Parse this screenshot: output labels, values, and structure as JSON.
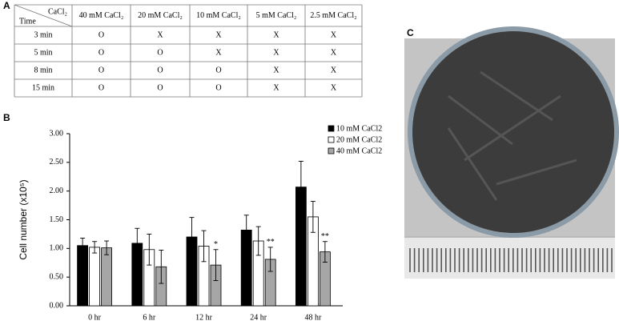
{
  "panels": {
    "a": "A",
    "b": "B",
    "c": "C"
  },
  "table": {
    "corner": {
      "top": "CaCl₂",
      "bottom": "Time"
    },
    "columns": [
      "40 mM CaCl₂",
      "20 mM CaCl₂",
      "10 mM CaCl₂",
      "5 mM CaCl₂",
      "2.5 mM CaCl₂"
    ],
    "rows": [
      [
        "3 min",
        "O",
        "X",
        "X",
        "X",
        "X"
      ],
      [
        "5 min",
        "O",
        "O",
        "X",
        "X",
        "X"
      ],
      [
        "8 min",
        "O",
        "O",
        "O",
        "X",
        "X"
      ],
      [
        "15 min",
        "O",
        "O",
        "O",
        "X",
        "X"
      ]
    ]
  },
  "chart_data": {
    "type": "bar",
    "ylabel": "Cell number (x10⁵)",
    "categories": [
      "0 hr",
      "6 hr",
      "12 hr",
      "24 hr",
      "48 hr"
    ],
    "series": [
      {
        "name": "10 mM CaCl2",
        "color": "#000000",
        "values": [
          1.05,
          1.09,
          1.2,
          1.32,
          2.07
        ],
        "errors": [
          0.13,
          0.26,
          0.34,
          0.26,
          0.45
        ]
      },
      {
        "name": "20 mM CaCl2",
        "color": "#ffffff",
        "values": [
          1.02,
          0.98,
          1.04,
          1.13,
          1.55
        ],
        "errors": [
          0.1,
          0.27,
          0.27,
          0.25,
          0.27
        ]
      },
      {
        "name": "40 mM CaCl2",
        "color": "#a6a6a6",
        "values": [
          1.01,
          0.68,
          0.71,
          0.81,
          0.94
        ],
        "errors": [
          0.12,
          0.29,
          0.27,
          0.21,
          0.18
        ],
        "annotations": [
          null,
          null,
          "*",
          "**",
          "**"
        ]
      }
    ],
    "ylim": [
      0,
      3
    ],
    "yticks": [
      {
        "value": 0,
        "label": "0.00"
      },
      {
        "value": 0.5,
        "label": "0.50"
      },
      {
        "value": 1,
        "label": "1.00"
      },
      {
        "value": 1.5,
        "label": "1.50"
      },
      {
        "value": 2,
        "label": "2.00"
      },
      {
        "value": 2.5,
        "label": "2.50"
      },
      {
        "value": 3,
        "label": "3.00"
      }
    ],
    "legend": "upper right"
  }
}
